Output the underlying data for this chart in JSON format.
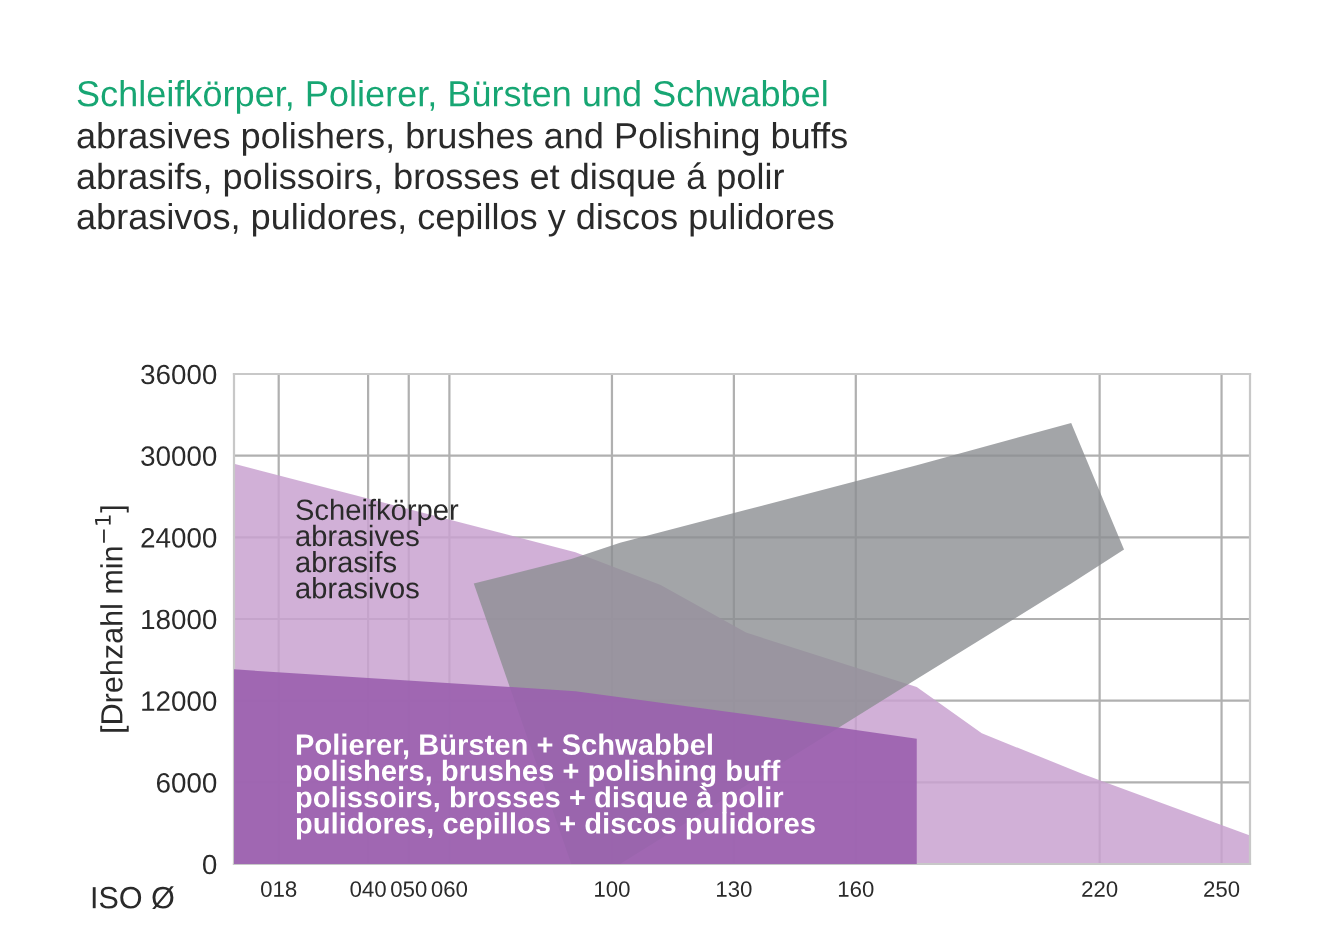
{
  "chart_data": {
    "type": "area",
    "title": "Schleifkörper, Polierer, Bürsten und Schwabbel",
    "subtitle": "abrasives polishers, brushes and Polishing buffs\nabrasifs, polissoirs, brosses et disque á polir\nabrasivos, pulidores, cepillos y discos pulidores",
    "xlabel": "ISO Ø",
    "ylabel": "[Drehzahl min$^{−1}$]",
    "series": [
      {
        "name": "Scheifkörper\nabrasives\nabrasifs\nabrasivos",
        "color": "#c9a2d0",
        "x": [
          7,
          91,
          112,
          133,
          175,
          191,
          216,
          257
        ],
        "values": [
          29400,
          22900,
          20500,
          17000,
          13000,
          9600,
          6600,
          2100
        ]
      },
      {
        "color": "#8c8e92",
        "x": [
          66,
          90,
          102,
          175,
          213,
          226
        ],
        "values": [
          null,
          null,
          null,
          null,
          null,
          null
        ],
        "upper": [
          20600,
          22400,
          23600,
          29300,
          32400,
          23100
        ],
        "lower": [
          20600,
          0,
          0,
          13600,
          20600,
          23100
        ]
      },
      {
        "name": "Polierer, Bürsten + Schwabbel\npolishers, brushes + polishing buff\npolissoirs, brosses + disque à polir\npulidores, cepillos + discos pulidores",
        "color": "#9a5fae",
        "x": [
          7,
          91,
          133,
          175
        ],
        "values": [
          14300,
          12700,
          11000,
          9200
        ]
      }
    ],
    "xlim": [
      7,
      257
    ],
    "xticks": [
      {
        "value": 18,
        "label": "018"
      },
      {
        "value": 40,
        "label": "040"
      },
      {
        "value": 50,
        "label": "050"
      },
      {
        "value": 60,
        "label": "060"
      },
      100,
      130,
      160,
      220,
      250
    ],
    "ylim": [
      0,
      36000
    ],
    "yticks": [
      0,
      6000,
      12000,
      18000,
      24000,
      30000,
      36000
    ],
    "grid": true,
    "legend": false
  }
}
